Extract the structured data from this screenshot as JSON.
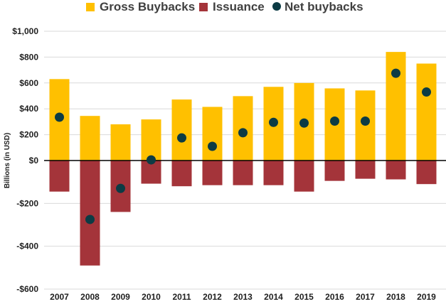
{
  "chart_data": {
    "type": "bar",
    "categories": [
      "2007",
      "2008",
      "2009",
      "2010",
      "2011",
      "2012",
      "2013",
      "2014",
      "2015",
      "2016",
      "2017",
      "2018",
      "2019"
    ],
    "series": [
      {
        "name": "Gross Buybacks",
        "kind": "bar",
        "color": "#FFC000",
        "values": [
          630,
          345,
          280,
          318,
          472,
          415,
          498,
          570,
          600,
          558,
          542,
          840,
          750
        ]
      },
      {
        "name": "Issuance",
        "kind": "bar",
        "color": "#A4343A",
        "values": [
          -145,
          -490,
          -240,
          -108,
          -120,
          -115,
          -115,
          -115,
          -145,
          -95,
          -85,
          -88,
          -110
        ]
      },
      {
        "name": "Net buybacks",
        "kind": "point",
        "color": "#0C3B44",
        "values": [
          335,
          -275,
          -130,
          5,
          175,
          110,
          215,
          295,
          290,
          305,
          305,
          675,
          530
        ]
      }
    ],
    "ylim": [
      -600,
      1000
    ],
    "yticks": [
      -600,
      -400,
      -200,
      0,
      200,
      400,
      600,
      800,
      1000
    ],
    "ytick_labels": [
      "-$600",
      "-$400",
      "-$200",
      "$0",
      "$200",
      "$400",
      "$600",
      "$800",
      "$1,000"
    ],
    "ylabel": "Billions (in USD)",
    "xlabel": "",
    "title": "",
    "grid": true,
    "legend": "top"
  }
}
